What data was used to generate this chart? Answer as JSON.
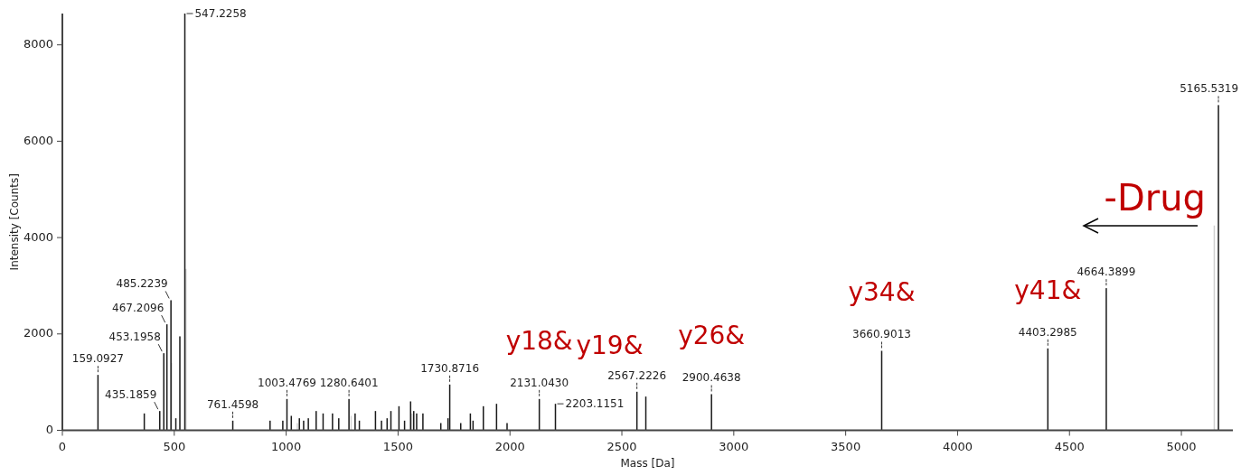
{
  "chart_data": {
    "type": "bar",
    "xlabel": "Mass [Da]",
    "ylabel": "Intensity [Counts]",
    "xlim": [
      0,
      5230
    ],
    "xticks": [
      0,
      500,
      1000,
      1500,
      2000,
      2500,
      3000,
      3500,
      4000,
      4500,
      5000
    ],
    "ylim": [
      0,
      8650
    ],
    "yticks": [
      0,
      2000,
      4000,
      6000,
      8000
    ],
    "series": [
      {
        "color": "#d0d0d0",
        "x": [
          488,
          552,
          1050,
          1290,
          1562,
          5147
        ],
        "values": [
          1400,
          3350,
          150,
          300,
          350,
          4250
        ]
      },
      {
        "color": "#1a1a1a",
        "x": [
          159.0927,
          366,
          435.1859,
          453.1958,
          467.2096,
          485.2239,
          507,
          525,
          547.2258,
          761.4598,
          928,
          985,
          1003.4769,
          1023,
          1059,
          1078,
          1099,
          1134,
          1165,
          1207,
          1235,
          1280.6401,
          1308,
          1327,
          1399,
          1426,
          1451,
          1468,
          1504,
          1529,
          1556,
          1570,
          1583,
          1611,
          1691,
          1723,
          1730.8716,
          1780,
          1823,
          1835,
          1881,
          1940,
          1987,
          2131.043,
          2203.1151,
          2567.2226,
          2607,
          2900.4638,
          3660.9013,
          4403.2985,
          4664.3899,
          5165.5319
        ],
        "values": [
          1150,
          350,
          400,
          1600,
          2200,
          2700,
          250,
          1950,
          8650,
          200,
          200,
          200,
          650,
          300,
          250,
          200,
          250,
          400,
          350,
          350,
          250,
          650,
          350,
          200,
          400,
          200,
          250,
          400,
          500,
          200,
          600,
          400,
          350,
          350,
          150,
          250,
          950,
          150,
          350,
          200,
          500,
          550,
          150,
          650,
          550,
          800,
          700,
          750,
          1650,
          1700,
          2950,
          6750
        ]
      }
    ],
    "annotations": [
      {
        "text": "159.0927",
        "x": 159.0927,
        "y": 1150
      },
      {
        "text": "435.1859",
        "x": 435.1859,
        "y": 400
      },
      {
        "text": "453.1958",
        "x": 453.1958,
        "y": 1600
      },
      {
        "text": "467.2096",
        "x": 467.2096,
        "y": 2200
      },
      {
        "text": "485.2239",
        "x": 485.2239,
        "y": 2700
      },
      {
        "text": "547.2258",
        "x": 547.2258,
        "y": 8650
      },
      {
        "text": "761.4598",
        "x": 761.4598,
        "y": 200
      },
      {
        "text": "1003.4769",
        "x": 1003.4769,
        "y": 650
      },
      {
        "text": "1280.6401",
        "x": 1280.6401,
        "y": 650
      },
      {
        "text": "1730.8716",
        "x": 1730.8716,
        "y": 950
      },
      {
        "text": "2131.0430",
        "x": 2131.043,
        "y": 650
      },
      {
        "text": "2203.1151",
        "x": 2203.1151,
        "y": 550
      },
      {
        "text": "2567.2226",
        "x": 2567.2226,
        "y": 800
      },
      {
        "text": "2900.4638",
        "x": 2900.4638,
        "y": 750
      },
      {
        "text": "3660.9013",
        "x": 3660.9013,
        "y": 1650
      },
      {
        "text": "4403.2985",
        "x": 4403.2985,
        "y": 1700
      },
      {
        "text": "4664.3899",
        "x": 4664.3899,
        "y": 2950
      },
      {
        "text": "5165.5319",
        "x": 5165.5319,
        "y": 6750
      },
      {
        "text": "y18&",
        "x": 2131.043,
        "y": 650
      },
      {
        "text": "y19&",
        "x": 2203.1151,
        "y": 550
      },
      {
        "text": "y26&",
        "x": 2900.4638,
        "y": 750
      },
      {
        "text": "y34&",
        "x": 3660.9013,
        "y": 1650
      },
      {
        "text": "y41&",
        "x": 4403.2985,
        "y": 1700
      },
      "-Drug"
    ]
  }
}
